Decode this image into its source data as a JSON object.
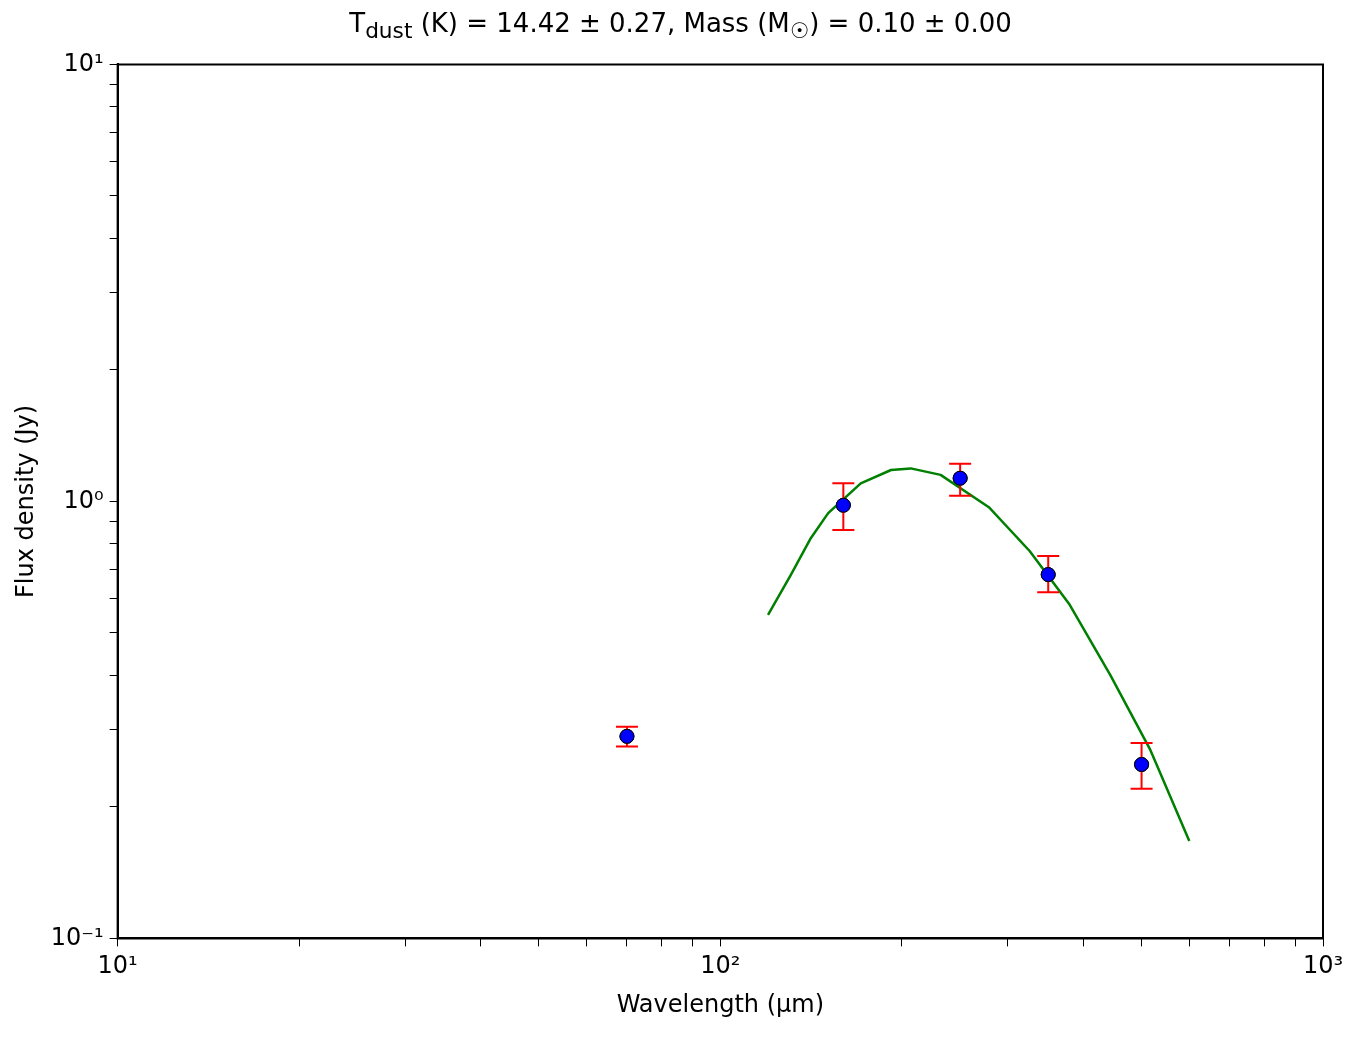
{
  "chart_data": {
    "type": "scatter",
    "title": "T$_{dust}$ (K) = 14.42 ± 0.27, Mass (M$_{☉}$) = 0.10 ± 0.00",
    "xlabel": "Wavelength (μm)",
    "ylabel": "Flux density (Jy)",
    "log": "xy",
    "marker": "circle",
    "xlim": [
      10,
      1000
    ],
    "ylim": [
      0.1,
      10
    ],
    "xticks": [
      {
        "value": 10,
        "label": "10¹"
      },
      {
        "value": 20,
        "label": null
      },
      {
        "value": 30,
        "label": null
      },
      {
        "value": 40,
        "label": null
      },
      {
        "value": 50,
        "label": null
      },
      {
        "value": 60,
        "label": null
      },
      {
        "value": 70,
        "label": null
      },
      {
        "value": 80,
        "label": null
      },
      {
        "value": 90,
        "label": null
      },
      {
        "value": 100,
        "label": "10²"
      },
      {
        "value": 200,
        "label": null
      },
      {
        "value": 300,
        "label": null
      },
      {
        "value": 400,
        "label": null
      },
      {
        "value": 500,
        "label": null
      },
      {
        "value": 600,
        "label": null
      },
      {
        "value": 700,
        "label": null
      },
      {
        "value": 800,
        "label": null
      },
      {
        "value": 900,
        "label": null
      },
      {
        "value": 1000,
        "label": "10³"
      }
    ],
    "yticks": [
      {
        "value": 0.1,
        "label": "10⁻¹"
      },
      {
        "value": 0.2,
        "label": null
      },
      {
        "value": 0.3,
        "label": null
      },
      {
        "value": 0.4,
        "label": null
      },
      {
        "value": 0.5,
        "label": null
      },
      {
        "value": 0.6,
        "label": null
      },
      {
        "value": 0.7,
        "label": null
      },
      {
        "value": 0.8,
        "label": null
      },
      {
        "value": 0.9,
        "label": null
      },
      {
        "value": 1,
        "label": "10⁰"
      },
      {
        "value": 2,
        "label": null
      },
      {
        "value": 3,
        "label": null
      },
      {
        "value": 4,
        "label": null
      },
      {
        "value": 5,
        "label": null
      },
      {
        "value": 6,
        "label": null
      },
      {
        "value": 7,
        "label": null
      },
      {
        "value": 8,
        "label": null
      },
      {
        "value": 9,
        "label": null
      },
      {
        "value": 10,
        "label": "10¹"
      }
    ],
    "series": [
      {
        "type": "line",
        "color": "#008000",
        "marker": "none",
        "x": [
          120,
          131,
          141,
          151,
          171,
          192,
          207,
          232,
          279,
          326,
          380,
          444,
          517,
          600
        ],
        "values": [
          0.55,
          0.68,
          0.82,
          0.94,
          1.1,
          1.18,
          1.19,
          1.15,
          0.97,
          0.77,
          0.58,
          0.4,
          0.27,
          0.167
        ]
      },
      {
        "type": "scatter",
        "color": "#0000ff",
        "x": [
          70,
          160,
          250,
          350,
          500
        ],
        "values": [
          0.29,
          0.98,
          1.13,
          0.68,
          0.25
        ],
        "errors": [
          [
            0.275,
            0.305
          ],
          [
            0.86,
            1.1
          ],
          [
            1.03,
            1.22
          ],
          [
            0.62,
            0.75
          ],
          [
            0.22,
            0.28
          ]
        ]
      }
    ]
  }
}
